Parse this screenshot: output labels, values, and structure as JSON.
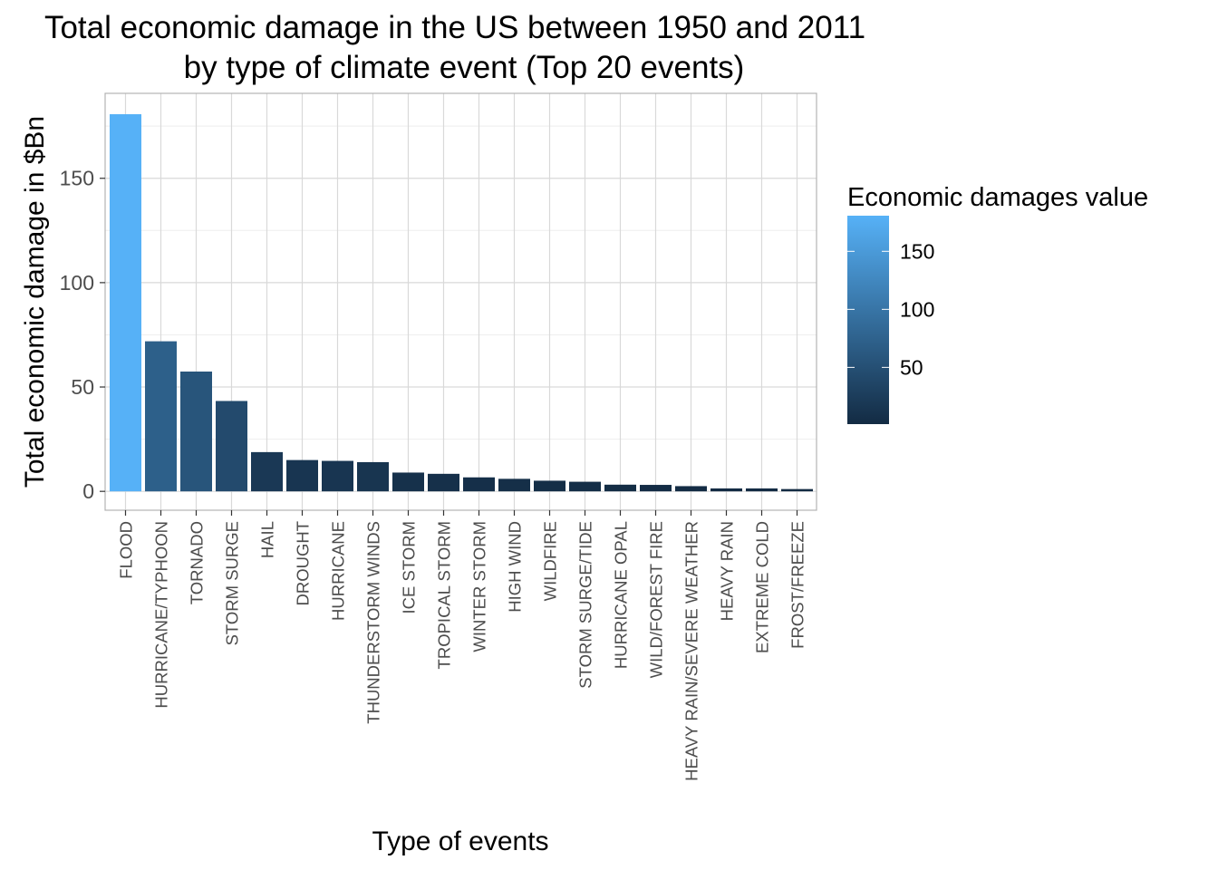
{
  "chart_data": {
    "type": "bar",
    "title": "Total economic damage in the US between 1950 and 2011",
    "subtitle": "by type of climate event (Top 20 events)",
    "xlabel": "Type of events",
    "ylabel": "Total economic damage in $Bn",
    "categories": [
      "FLOOD",
      "HURRICANE/TYPHOON",
      "TORNADO",
      "STORM SURGE",
      "HAIL",
      "DROUGHT",
      "HURRICANE",
      "THUNDERSTORM WINDS",
      "ICE STORM",
      "TROPICAL STORM",
      "WINTER STORM",
      "HIGH WIND",
      "WILDFIRE",
      "STORM SURGE/TIDE",
      "HURRICANE OPAL",
      "WILD/FOREST FIRE",
      "HEAVY RAIN/SEVERE WEATHER",
      "HEAVY RAIN",
      "EXTREME COLD",
      "FROST/FREEZE"
    ],
    "values": [
      180.7,
      71.9,
      57.4,
      43.3,
      18.8,
      15.0,
      14.6,
      14.0,
      9.0,
      8.4,
      6.7,
      6.0,
      5.1,
      4.6,
      3.2,
      3.1,
      2.5,
      1.4,
      1.4,
      1.1
    ],
    "ylim": [
      -9.04,
      190.7
    ],
    "yticks": [
      0,
      50,
      100,
      150
    ],
    "grid": true,
    "legend": {
      "title": "Economic damages value",
      "placement": "right",
      "ticks": [
        50,
        100,
        150
      ],
      "range": [
        1.1,
        180.7
      ],
      "low_color": "#132B43",
      "high_color": "#56B1F7"
    },
    "colors": {
      "panel_border": "#b3b3b3",
      "grid_major": "#d9d9d9",
      "grid_minor": "#eeeeee",
      "tick_text": "#4d4d4d"
    }
  }
}
